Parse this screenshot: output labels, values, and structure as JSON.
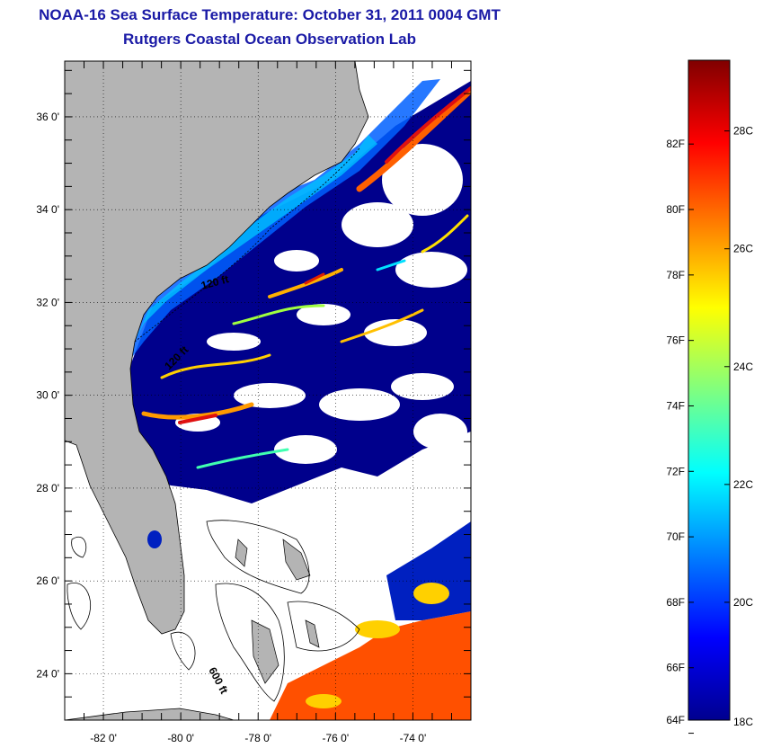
{
  "title": {
    "line1": "NOAA-16 Sea Surface Temperature:  October 31, 2011 0004 GMT",
    "line2": "Rutgers Coastal Ocean Observation Lab"
  },
  "map": {
    "lat_labels": [
      "36 0'",
      "34 0'",
      "32 0'",
      "30 0'",
      "28 0'",
      "26 0'",
      "24 0'"
    ],
    "lat_values": [
      36,
      34,
      32,
      30,
      28,
      26,
      24
    ],
    "lon_labels": [
      "-82 0'",
      "-80 0'",
      "-78 0'",
      "-76 0'",
      "-74 0'"
    ],
    "lon_values": [
      -82,
      -80,
      -78,
      -76,
      -74
    ],
    "lat_range": [
      23,
      37.2
    ],
    "lon_range": [
      -83,
      -72.5
    ],
    "isobath_labels": [
      "120 ft",
      "120 ft",
      "600 ft"
    ],
    "land_color": "#b4b4b4",
    "ocean_cold_color": "#00008c"
  },
  "colorbar": {
    "f_labels": [
      "82F",
      "80F",
      "78F",
      "76F",
      "74F",
      "72F",
      "70F",
      "68F",
      "66F",
      "64F"
    ],
    "f_values": [
      82,
      80,
      78,
      76,
      74,
      72,
      70,
      68,
      66,
      64
    ],
    "c_labels": [
      "28C",
      "26C",
      "24C",
      "22C",
      "20C",
      "18C"
    ],
    "c_values": [
      28,
      26,
      24,
      22,
      20,
      18
    ],
    "range_c": [
      18,
      29.2
    ],
    "colormap": "jet"
  }
}
